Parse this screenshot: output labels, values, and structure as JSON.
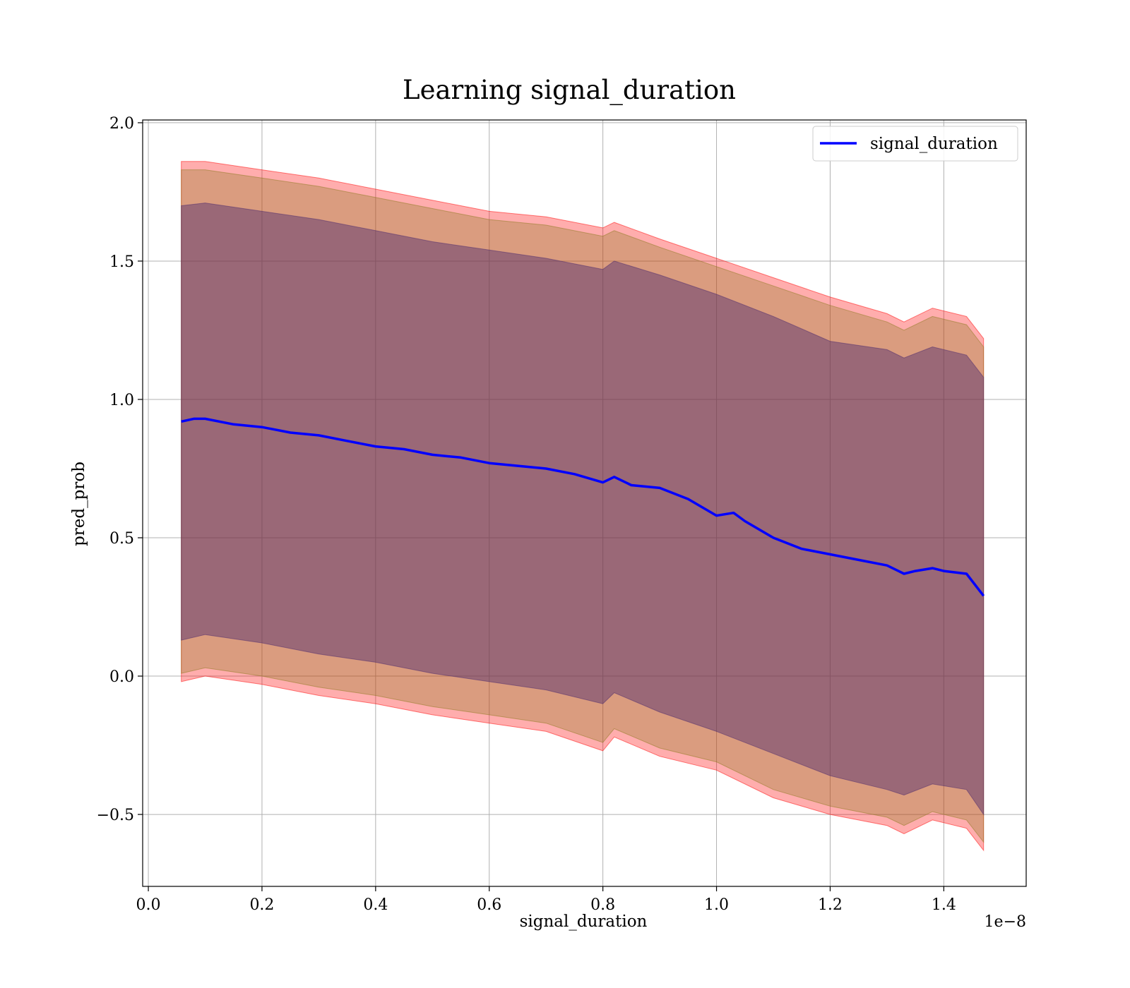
{
  "chart_data": {
    "type": "line",
    "title": "Learning signal_duration",
    "xlabel": "signal_duration",
    "ylabel": "pred_prob",
    "x_offset_text": "1e−8",
    "xlim": [
      -0.01,
      1.545
    ],
    "ylim": [
      -0.76,
      2.01
    ],
    "x_ticks": [
      0.0,
      0.2,
      0.4,
      0.6,
      0.8,
      1.0,
      1.2,
      1.4
    ],
    "x_tick_labels": [
      "0.0",
      "0.2",
      "0.4",
      "0.6",
      "0.8",
      "1.0",
      "1.2",
      "1.4"
    ],
    "y_ticks": [
      -0.5,
      0.0,
      0.5,
      1.0,
      1.5,
      2.0
    ],
    "y_tick_labels": [
      "−0.5",
      "0.0",
      "0.5",
      "1.0",
      "1.5",
      "2.0"
    ],
    "grid": true,
    "legend": {
      "position": "top-right",
      "entries": [
        "signal_duration"
      ]
    },
    "series": [
      {
        "name": "signal_duration",
        "color": "#0000ff",
        "x": [
          0.058,
          0.08,
          0.1,
          0.15,
          0.2,
          0.25,
          0.3,
          0.35,
          0.4,
          0.45,
          0.5,
          0.55,
          0.6,
          0.65,
          0.7,
          0.75,
          0.8,
          0.82,
          0.85,
          0.9,
          0.95,
          1.0,
          1.03,
          1.05,
          1.1,
          1.15,
          1.2,
          1.25,
          1.3,
          1.33,
          1.35,
          1.38,
          1.4,
          1.44,
          1.47
        ],
        "y": [
          0.92,
          0.93,
          0.93,
          0.91,
          0.9,
          0.88,
          0.87,
          0.85,
          0.83,
          0.82,
          0.8,
          0.79,
          0.77,
          0.76,
          0.75,
          0.73,
          0.7,
          0.72,
          0.69,
          0.68,
          0.64,
          0.58,
          0.59,
          0.56,
          0.5,
          0.46,
          0.44,
          0.42,
          0.4,
          0.37,
          0.38,
          0.39,
          0.38,
          0.37,
          0.29
        ]
      }
    ],
    "bands": [
      {
        "color": "#ff0000",
        "opacity": 0.32,
        "x": [
          0.058,
          0.1,
          0.2,
          0.3,
          0.4,
          0.5,
          0.6,
          0.7,
          0.8,
          0.82,
          0.9,
          1.0,
          1.1,
          1.2,
          1.3,
          1.33,
          1.38,
          1.44,
          1.47
        ],
        "upper": [
          1.86,
          1.86,
          1.83,
          1.8,
          1.76,
          1.72,
          1.68,
          1.66,
          1.62,
          1.64,
          1.58,
          1.51,
          1.44,
          1.37,
          1.31,
          1.28,
          1.33,
          1.3,
          1.22
        ],
        "lower": [
          -0.02,
          0.0,
          -0.03,
          -0.07,
          -0.1,
          -0.14,
          -0.17,
          -0.2,
          -0.27,
          -0.22,
          -0.29,
          -0.34,
          -0.44,
          -0.5,
          -0.54,
          -0.57,
          -0.52,
          -0.55,
          -0.63
        ]
      },
      {
        "color": "#8c7a1e",
        "opacity": 0.32,
        "x": [
          0.058,
          0.1,
          0.2,
          0.3,
          0.4,
          0.5,
          0.6,
          0.7,
          0.8,
          0.82,
          0.9,
          1.0,
          1.1,
          1.2,
          1.3,
          1.33,
          1.38,
          1.44,
          1.47
        ],
        "upper": [
          1.83,
          1.83,
          1.8,
          1.77,
          1.73,
          1.69,
          1.65,
          1.63,
          1.59,
          1.61,
          1.55,
          1.48,
          1.41,
          1.34,
          1.28,
          1.25,
          1.3,
          1.27,
          1.19
        ],
        "lower": [
          0.01,
          0.03,
          0.0,
          -0.04,
          -0.07,
          -0.11,
          -0.14,
          -0.17,
          -0.24,
          -0.19,
          -0.26,
          -0.31,
          -0.41,
          -0.47,
          -0.51,
          -0.54,
          -0.49,
          -0.52,
          -0.6
        ]
      },
      {
        "color": "#4b2a6e",
        "opacity": 0.45,
        "x": [
          0.058,
          0.1,
          0.2,
          0.3,
          0.4,
          0.5,
          0.6,
          0.7,
          0.8,
          0.82,
          0.9,
          1.0,
          1.1,
          1.2,
          1.3,
          1.33,
          1.38,
          1.44,
          1.47
        ],
        "upper": [
          1.7,
          1.71,
          1.68,
          1.65,
          1.61,
          1.57,
          1.54,
          1.51,
          1.47,
          1.5,
          1.45,
          1.38,
          1.3,
          1.21,
          1.18,
          1.15,
          1.19,
          1.16,
          1.08
        ],
        "lower": [
          0.13,
          0.15,
          0.12,
          0.08,
          0.05,
          0.01,
          -0.02,
          -0.05,
          -0.1,
          -0.06,
          -0.13,
          -0.2,
          -0.28,
          -0.36,
          -0.41,
          -0.43,
          -0.39,
          -0.41,
          -0.5
        ]
      }
    ]
  }
}
